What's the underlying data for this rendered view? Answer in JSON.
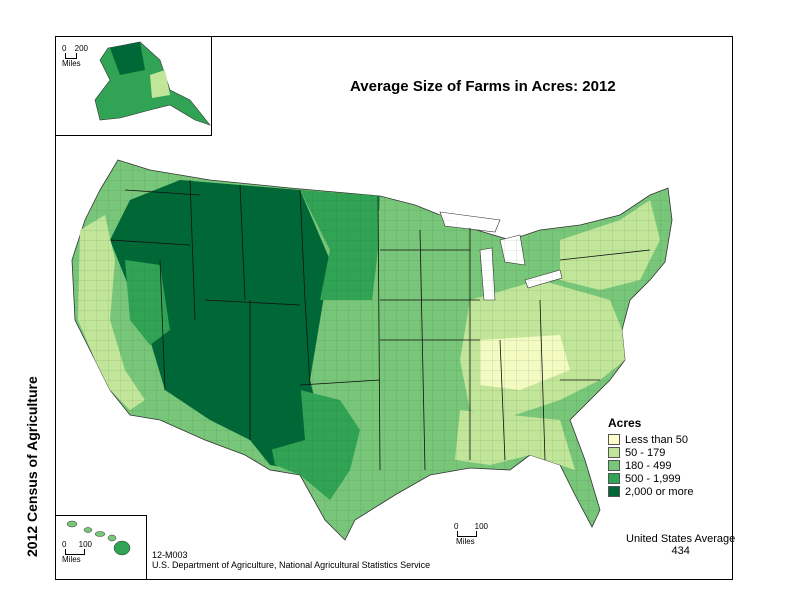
{
  "title": "Average Size of Farms in Acres:  2012",
  "side_title": "2012 Census of Agriculture",
  "legend": {
    "title": "Acres",
    "items": [
      {
        "label": "Less than 50",
        "color": "#ffffcc"
      },
      {
        "label": "50 - 179",
        "color": "#c2e699"
      },
      {
        "label": "180 - 499",
        "color": "#78c679"
      },
      {
        "label": "500 - 1,999",
        "color": "#31a354"
      },
      {
        "label": "2,000 or more",
        "color": "#006837"
      }
    ]
  },
  "us_average": {
    "label": "United States Average",
    "value": "434"
  },
  "footer": {
    "code": "12-M003",
    "source": "U.S. Department of Agriculture, National Agricultural Statistics Service"
  },
  "scales": {
    "alaska": {
      "start": "0",
      "end": "200",
      "unit": "Miles"
    },
    "hawaii": {
      "start": "0",
      "end": "100",
      "unit": "Miles"
    },
    "conus": {
      "start": "0",
      "end": "100",
      "unit": "Miles"
    }
  }
}
